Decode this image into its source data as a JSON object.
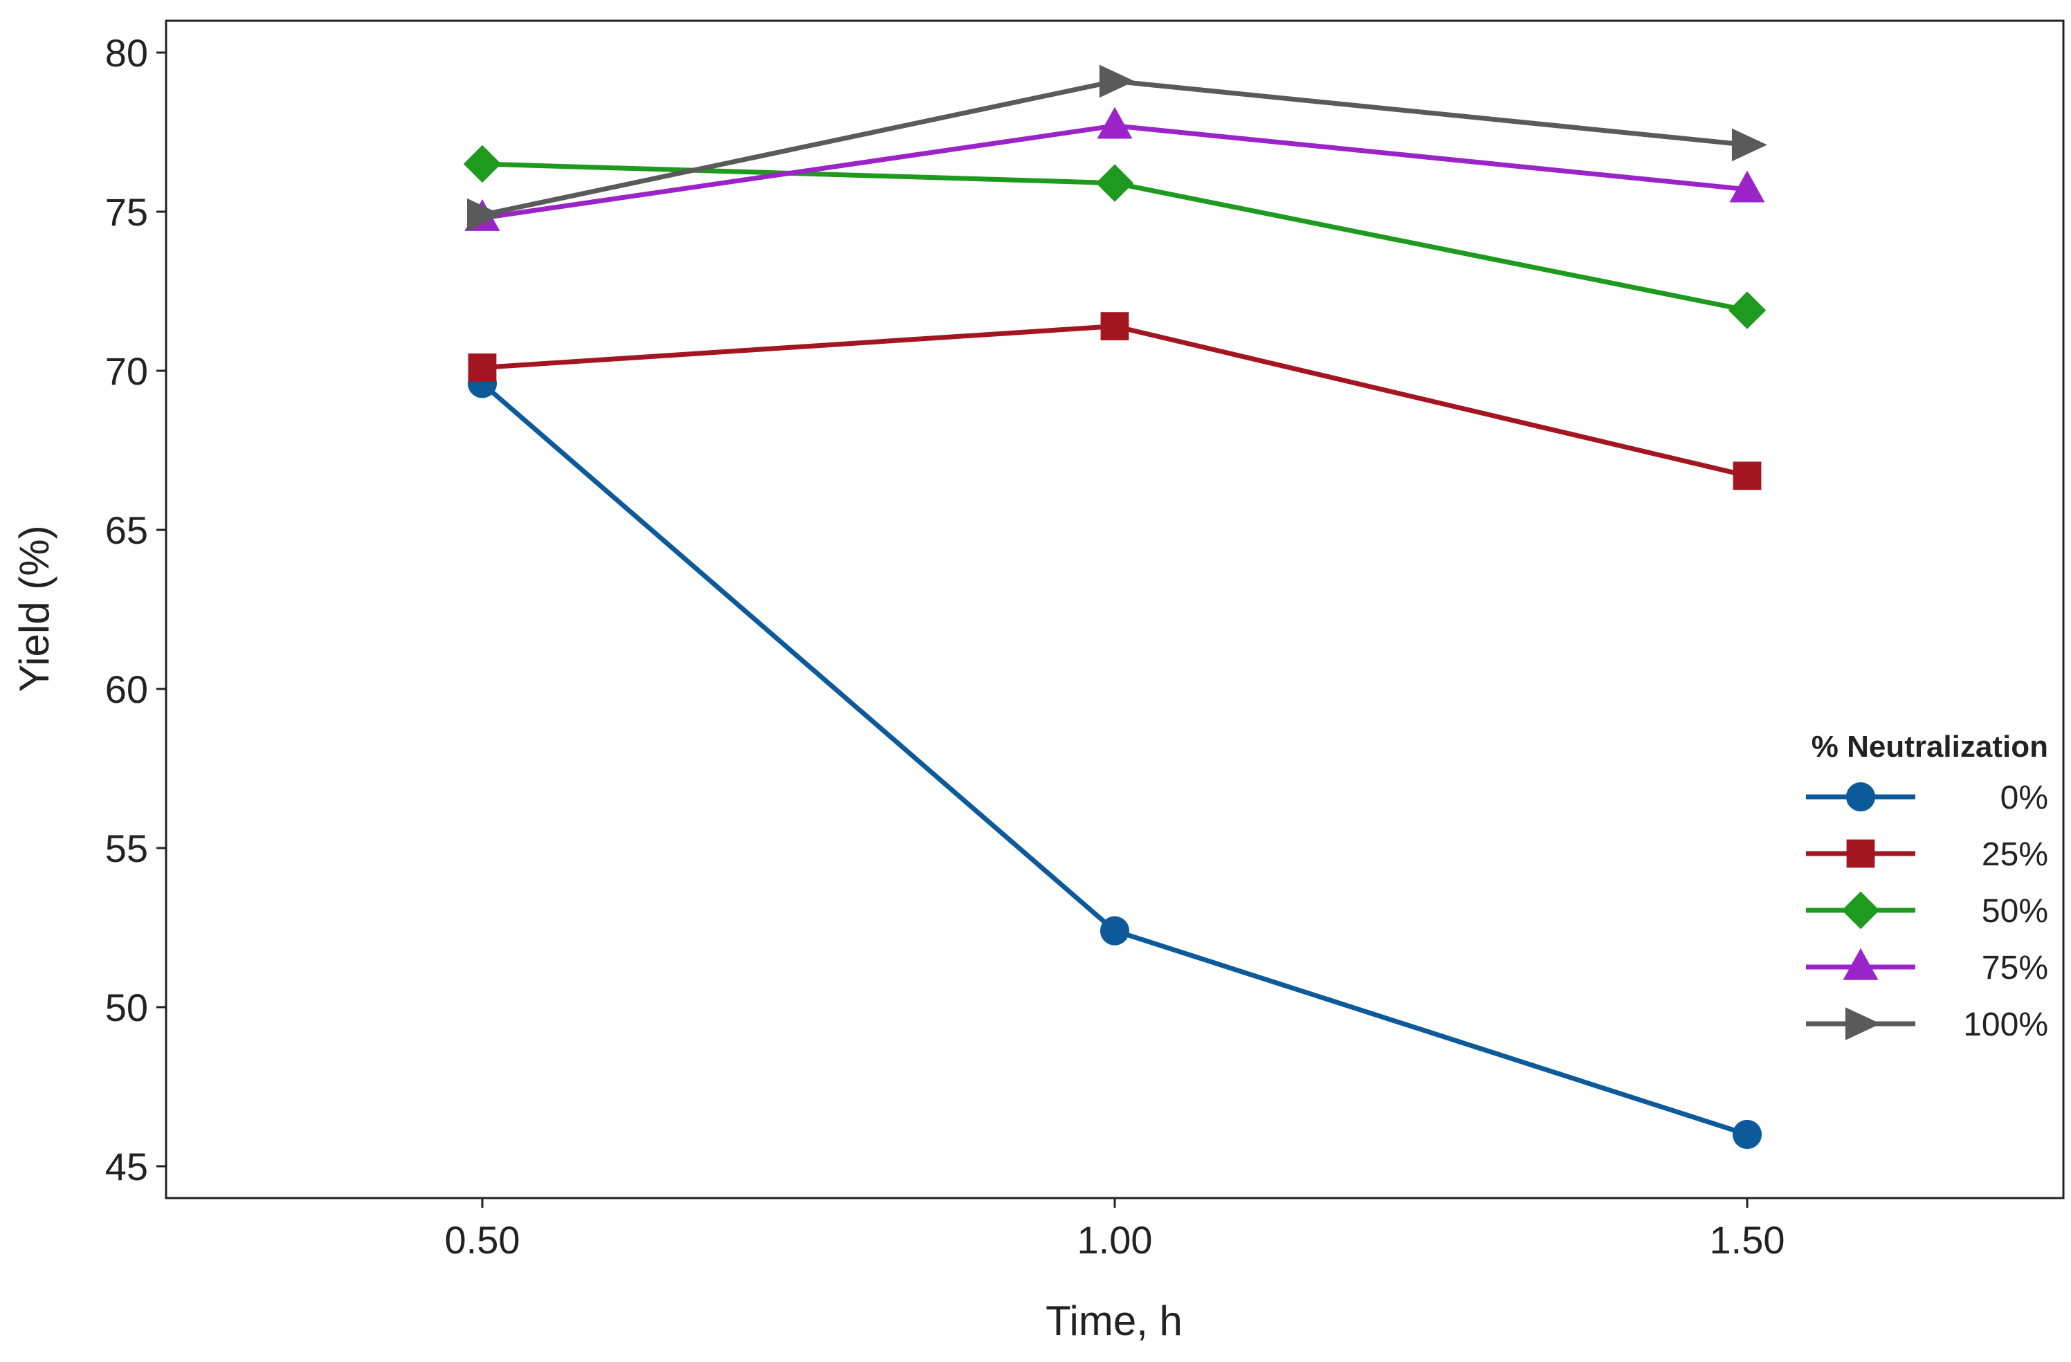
{
  "chart_data": {
    "type": "line",
    "title": "",
    "xlabel": "Time, h",
    "ylabel": "Yield (%)",
    "x": [
      0.5,
      1.0,
      1.5
    ],
    "x_tick_labels": [
      "0.50",
      "1.00",
      "1.50"
    ],
    "xlim": [
      0.25,
      1.75
    ],
    "ylim": [
      44,
      81
    ],
    "y_ticks": [
      45,
      50,
      55,
      60,
      65,
      70,
      75,
      80
    ],
    "grid": false,
    "legend": {
      "title": "% Neutralization",
      "position": "right"
    },
    "series": [
      {
        "name": "0%",
        "values": [
          69.6,
          52.4,
          46.0
        ],
        "color": "#0d5a9a",
        "marker": "circle"
      },
      {
        "name": "25%",
        "values": [
          70.1,
          71.4,
          66.7
        ],
        "color": "#a31621",
        "marker": "square"
      },
      {
        "name": "50%",
        "values": [
          76.5,
          75.9,
          71.9
        ],
        "color": "#1e9a1e",
        "marker": "diamond"
      },
      {
        "name": "75%",
        "values": [
          74.8,
          77.7,
          75.7
        ],
        "color": "#9b24c9",
        "marker": "triangle"
      },
      {
        "name": "100%",
        "values": [
          74.9,
          79.1,
          77.1
        ],
        "color": "#5a5a5a",
        "marker": "arrow-right"
      }
    ]
  }
}
